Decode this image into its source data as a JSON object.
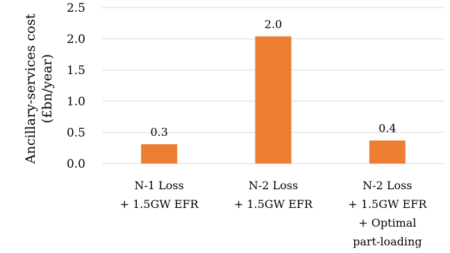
{
  "chart_data": {
    "type": "bar",
    "title": "",
    "ylabel": [
      "Ancillary-services cost",
      "(£bn/year)"
    ],
    "xlabel": "",
    "ylim": [
      0,
      2.5
    ],
    "yticks": [
      "0.0",
      "0.5",
      "1.0",
      "1.5",
      "2.0",
      "2.5"
    ],
    "grid": true,
    "legend": "none",
    "categories": [
      [
        "N-1 Loss",
        "+ 1.5GW EFR"
      ],
      [
        "N-2 Loss",
        "+ 1.5GW EFR"
      ],
      [
        "N-2 Loss",
        "+ 1.5GW EFR",
        "+ Optimal",
        "part-loading"
      ]
    ],
    "values": [
      0.31,
      2.04,
      0.37
    ],
    "data_labels": [
      "0.3",
      "2.0",
      "0.4"
    ],
    "bar_color": "#ED7D31",
    "grid_color": "#D9D9D9"
  }
}
